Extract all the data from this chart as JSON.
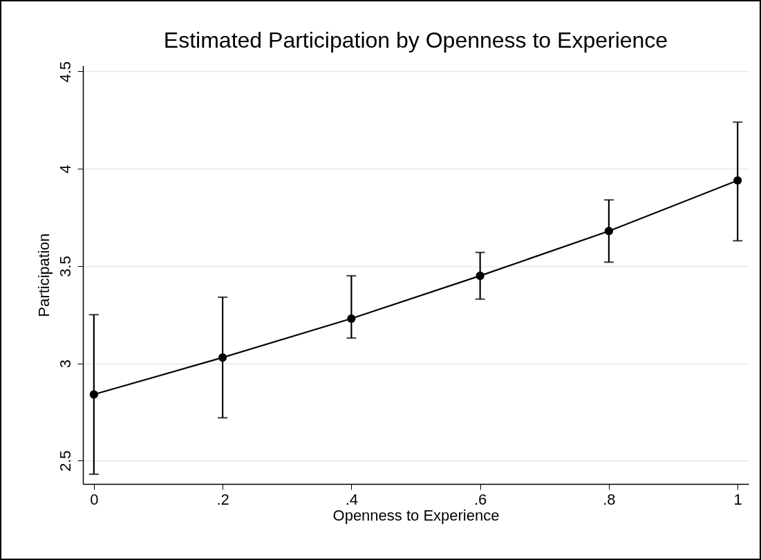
{
  "chart_data": {
    "type": "line",
    "title": "Estimated Participation by Openness to Experience",
    "xlabel": "Openness to Experience",
    "ylabel": "Participation",
    "x": [
      0,
      0.2,
      0.4,
      0.6,
      0.8,
      1
    ],
    "series": [
      {
        "color": "#000000",
        "values": [
          2.84,
          3.03,
          3.23,
          3.45,
          3.68,
          3.94
        ],
        "errors": [
          [
            2.43,
            3.25
          ],
          [
            2.72,
            3.34
          ],
          [
            3.13,
            3.45
          ],
          [
            3.33,
            3.57
          ],
          [
            3.52,
            3.84
          ],
          [
            3.63,
            4.24
          ]
        ]
      }
    ],
    "xlim": [
      -0.017,
      1.017
    ],
    "ylim": [
      2.38,
      4.53
    ],
    "xticks": [
      0,
      {
        "value": 0.2,
        "label": ".2"
      },
      {
        "value": 0.4,
        "label": ".4"
      },
      {
        "value": 0.6,
        "label": ".6"
      },
      {
        "value": 0.8,
        "label": ".8"
      },
      1
    ],
    "yticks": [
      2.5,
      3,
      3.5,
      4,
      4.5
    ],
    "grid": "y",
    "marker": "circle",
    "line_style": "solid"
  }
}
